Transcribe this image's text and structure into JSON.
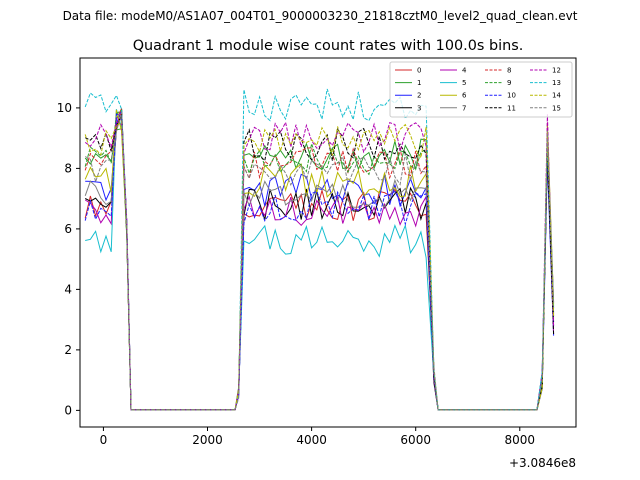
{
  "figure": {
    "suptitle": "Data file: modeM0/AS1A07_004T01_9000003230_21818cztM0_level2_quad_clean.evt"
  },
  "chart_data": {
    "type": "line",
    "title": "Quadrant 1 module wise count rates with 100.0s bins.",
    "xlabel": "",
    "ylabel": "",
    "x_offset_label": "+3.0846e8",
    "xlim": [
      -450,
      9080
    ],
    "ylim": [
      -0.55,
      11.65
    ],
    "xticks": [
      0,
      2000,
      4000,
      6000,
      8000
    ],
    "xtick_labels": [
      "0",
      "2000",
      "4000",
      "6000",
      "8000"
    ],
    "yticks": [
      0,
      2,
      4,
      6,
      8,
      10
    ],
    "ytick_labels": [
      "0",
      "2",
      "4",
      "6",
      "8",
      "10"
    ],
    "grid": false,
    "legend_position": "top-right",
    "legend_columns": 4,
    "shape": {
      "time_start": -350,
      "bin": 100,
      "segments": [
        {
          "start": -350,
          "end": 350,
          "kind": "data"
        },
        {
          "start": 450,
          "end": 450,
          "kind": "drop"
        },
        {
          "start": 530,
          "end": 2530,
          "kind": "zero"
        },
        {
          "start": 2600,
          "end": 6200,
          "kind": "data"
        },
        {
          "start": 6350,
          "end": 6350,
          "kind": "drop"
        },
        {
          "start": 6430,
          "end": 8330,
          "kind": "zero"
        },
        {
          "start": 8430,
          "end": 8430,
          "kind": "rise"
        },
        {
          "start": 8530,
          "end": 8650,
          "kind": "spike"
        }
      ]
    },
    "series": [
      {
        "name": "0",
        "color": "#d62728",
        "style": "solid",
        "level": 6.8
      },
      {
        "name": "1",
        "color": "#2ca02c",
        "style": "solid",
        "level": 8.5
      },
      {
        "name": "2",
        "color": "#1f1fff",
        "style": "solid",
        "level": 7.3
      },
      {
        "name": "3",
        "color": "#000000",
        "style": "solid",
        "level": 6.8
      },
      {
        "name": "4",
        "color": "#b000b0",
        "style": "solid",
        "level": 6.6
      },
      {
        "name": "5",
        "color": "#17becf",
        "style": "solid",
        "level": 5.6
      },
      {
        "name": "6",
        "color": "#b8b800",
        "style": "solid",
        "level": 7.6
      },
      {
        "name": "7",
        "color": "#808080",
        "style": "solid",
        "level": 7.2
      },
      {
        "name": "8",
        "color": "#d62728",
        "style": "dashed",
        "level": 8.2
      },
      {
        "name": "9",
        "color": "#2ca02c",
        "style": "dashed",
        "level": 8.3
      },
      {
        "name": "10",
        "color": "#1f1fff",
        "style": "dashed",
        "level": 6.7
      },
      {
        "name": "11",
        "color": "#000000",
        "style": "dashed",
        "level": 8.8
      },
      {
        "name": "12",
        "color": "#b000b0",
        "style": "dashed",
        "level": 9.0
      },
      {
        "name": "13",
        "color": "#17becf",
        "style": "dashed",
        "level": 10.1
      },
      {
        "name": "14",
        "color": "#b8b800",
        "style": "dashed",
        "level": 8.9
      },
      {
        "name": "15",
        "color": "#808080",
        "style": "dashed",
        "level": 8.0
      }
    ]
  }
}
